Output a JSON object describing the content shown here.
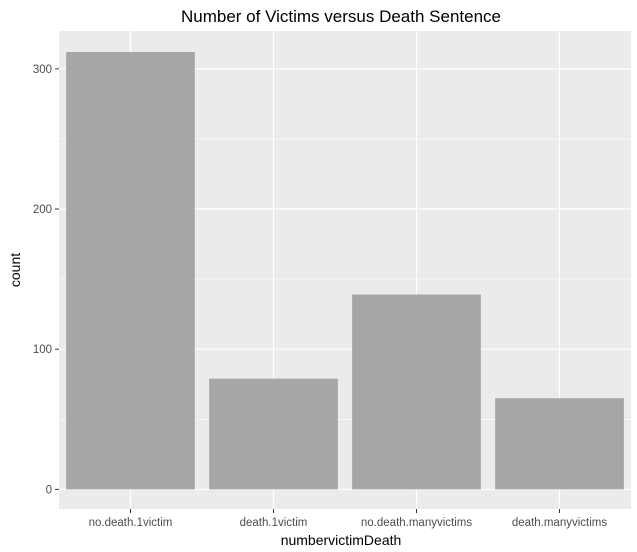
{
  "chart_data": {
    "type": "bar",
    "title": "Number of Victims versus Death Sentence",
    "xlabel": "numbervictimDeath",
    "ylabel": "count",
    "categories": [
      "no.death.1victim",
      "death.1victim",
      "no.death.manyvictims",
      "death.manyvictims"
    ],
    "values": [
      312,
      79,
      139,
      65
    ],
    "ylim": [
      -14,
      327
    ],
    "yticks": [
      0,
      100,
      200,
      300
    ],
    "grid": true,
    "legend": "none",
    "colors": {
      "panel": "#ebebeb",
      "grid_major": "#ffffff",
      "bar": "#a6a6a6",
      "tick_text": "#4d4d4d",
      "tick_mark": "#333333"
    }
  }
}
